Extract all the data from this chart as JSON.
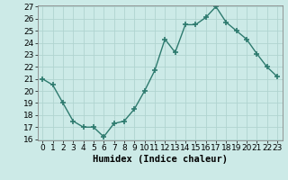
{
  "x": [
    0,
    1,
    2,
    3,
    4,
    5,
    6,
    7,
    8,
    9,
    10,
    11,
    12,
    13,
    14,
    15,
    16,
    17,
    18,
    19,
    20,
    21,
    22,
    23
  ],
  "y": [
    21.0,
    20.5,
    19.0,
    17.5,
    17.0,
    17.0,
    16.2,
    17.3,
    17.5,
    18.5,
    20.0,
    21.7,
    24.3,
    23.2,
    25.5,
    25.5,
    26.1,
    27.0,
    25.7,
    25.0,
    24.3,
    23.1,
    22.0,
    21.2
  ],
  "line_color": "#2d7a6e",
  "marker": "+",
  "marker_size": 4,
  "marker_linewidth": 1.2,
  "xlabel": "Humidex (Indice chaleur)",
  "ylim_min": 16,
  "ylim_max": 27,
  "xlim_min": -0.5,
  "xlim_max": 23.5,
  "yticks": [
    16,
    17,
    18,
    19,
    20,
    21,
    22,
    23,
    24,
    25,
    26,
    27
  ],
  "xticks": [
    0,
    1,
    2,
    3,
    4,
    5,
    6,
    7,
    8,
    9,
    10,
    11,
    12,
    13,
    14,
    15,
    16,
    17,
    18,
    19,
    20,
    21,
    22,
    23
  ],
  "bg_color": "#cceae7",
  "grid_color": "#b0d4d0",
  "tick_label_size": 6.5,
  "xlabel_size": 7.5,
  "linewidth": 1.0
}
